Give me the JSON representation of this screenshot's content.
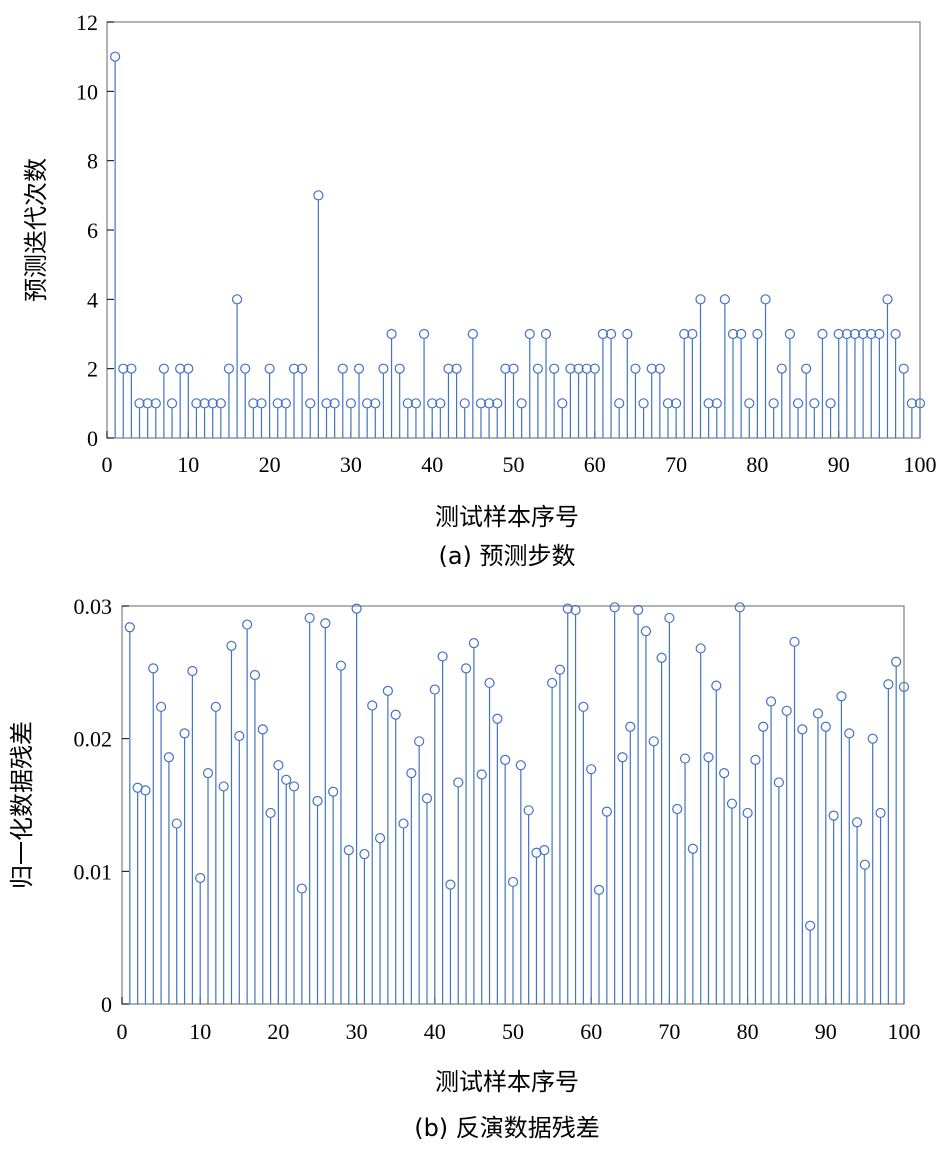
{
  "colors": {
    "stem": "#4472c4",
    "frame": "#7f7f7f"
  },
  "chart_data": [
    {
      "type": "stem",
      "caption": "(a) 预测步数",
      "xlabel": "测试样本序号",
      "ylabel": "预测迭代次数",
      "xlim": [
        0,
        100
      ],
      "ylim": [
        0,
        12
      ],
      "xticks": [
        "0",
        "10",
        "20",
        "30",
        "40",
        "50",
        "60",
        "70",
        "80",
        "90",
        "100"
      ],
      "yticks": [
        "0",
        "2",
        "4",
        "6",
        "8",
        "10",
        "12"
      ],
      "grid": false,
      "x": [
        1,
        2,
        3,
        4,
        5,
        6,
        7,
        8,
        9,
        10,
        11,
        12,
        13,
        14,
        15,
        16,
        17,
        18,
        19,
        20,
        21,
        22,
        23,
        24,
        25,
        26,
        27,
        28,
        29,
        30,
        31,
        32,
        33,
        34,
        35,
        36,
        37,
        38,
        39,
        40,
        41,
        42,
        43,
        44,
        45,
        46,
        47,
        48,
        49,
        50,
        51,
        52,
        53,
        54,
        55,
        56,
        57,
        58,
        59,
        60,
        61,
        62,
        63,
        64,
        65,
        66,
        67,
        68,
        69,
        70,
        71,
        72,
        73,
        74,
        75,
        76,
        77,
        78,
        79,
        80,
        81,
        82,
        83,
        84,
        85,
        86,
        87,
        88,
        89,
        90,
        91,
        92,
        93,
        94,
        95,
        96,
        97,
        98,
        99,
        100
      ],
      "values": [
        11,
        2,
        2,
        1,
        1,
        1,
        2,
        1,
        2,
        2,
        1,
        1,
        1,
        1,
        2,
        4,
        2,
        1,
        1,
        2,
        1,
        1,
        2,
        2,
        1,
        7,
        1,
        1,
        2,
        1,
        2,
        1,
        1,
        2,
        3,
        2,
        1,
        1,
        3,
        1,
        1,
        2,
        2,
        1,
        3,
        1,
        1,
        1,
        2,
        2,
        1,
        3,
        2,
        3,
        2,
        1,
        2,
        2,
        2,
        2,
        3,
        3,
        1,
        3,
        2,
        1,
        2,
        2,
        1,
        1,
        3,
        3,
        4,
        1,
        1,
        4,
        3,
        3,
        1,
        3,
        4,
        1,
        2,
        3,
        1,
        2,
        1,
        3,
        1,
        3,
        3,
        3,
        3,
        3,
        3,
        4,
        3,
        2,
        1,
        1
      ]
    },
    {
      "type": "stem",
      "caption": "(b) 反演数据残差",
      "xlabel": "测试样本序号",
      "ylabel": "归一化数据残差",
      "xlim": [
        0,
        100
      ],
      "ylim": [
        0,
        0.03
      ],
      "xticks": [
        "0",
        "10",
        "20",
        "30",
        "40",
        "50",
        "60",
        "70",
        "80",
        "90",
        "100"
      ],
      "yticks": [
        "0",
        "0.01",
        "0.02",
        "0.03"
      ],
      "grid": false,
      "x": [
        1,
        2,
        3,
        4,
        5,
        6,
        7,
        8,
        9,
        10,
        11,
        12,
        13,
        14,
        15,
        16,
        17,
        18,
        19,
        20,
        21,
        22,
        23,
        24,
        25,
        26,
        27,
        28,
        29,
        30,
        31,
        32,
        33,
        34,
        35,
        36,
        37,
        38,
        39,
        40,
        41,
        42,
        43,
        44,
        45,
        46,
        47,
        48,
        49,
        50,
        51,
        52,
        53,
        54,
        55,
        56,
        57,
        58,
        59,
        60,
        61,
        62,
        63,
        64,
        65,
        66,
        67,
        68,
        69,
        70,
        71,
        72,
        73,
        74,
        75,
        76,
        77,
        78,
        79,
        80,
        81,
        82,
        83,
        84,
        85,
        86,
        87,
        88,
        89,
        90,
        91,
        92,
        93,
        94,
        95,
        96,
        97,
        98,
        99,
        100
      ],
      "values": [
        0.0284,
        0.0163,
        0.0161,
        0.0253,
        0.0224,
        0.0186,
        0.0136,
        0.0204,
        0.0251,
        0.0095,
        0.0174,
        0.0224,
        0.0164,
        0.027,
        0.0202,
        0.0286,
        0.0248,
        0.0207,
        0.0144,
        0.018,
        0.0169,
        0.0164,
        0.0087,
        0.0291,
        0.0153,
        0.0287,
        0.016,
        0.0255,
        0.0116,
        0.0298,
        0.0113,
        0.0225,
        0.0125,
        0.0236,
        0.0218,
        0.0136,
        0.0174,
        0.0198,
        0.0155,
        0.0237,
        0.0262,
        0.009,
        0.0167,
        0.0253,
        0.0272,
        0.0173,
        0.0242,
        0.0215,
        0.0184,
        0.0092,
        0.018,
        0.0146,
        0.0114,
        0.0116,
        0.0242,
        0.0252,
        0.0298,
        0.0297,
        0.0224,
        0.0177,
        0.0086,
        0.0145,
        0.0299,
        0.0186,
        0.0209,
        0.0297,
        0.0281,
        0.0198,
        0.0261,
        0.0291,
        0.0147,
        0.0185,
        0.0117,
        0.0268,
        0.0186,
        0.024,
        0.0174,
        0.0151,
        0.0299,
        0.0144,
        0.0184,
        0.0209,
        0.0228,
        0.0167,
        0.0221,
        0.0273,
        0.0207,
        0.0059,
        0.0219,
        0.0209,
        0.0142,
        0.0232,
        0.0204,
        0.0137,
        0.0105,
        0.02,
        0.0144,
        0.0241,
        0.0258,
        0.0239
      ]
    }
  ]
}
